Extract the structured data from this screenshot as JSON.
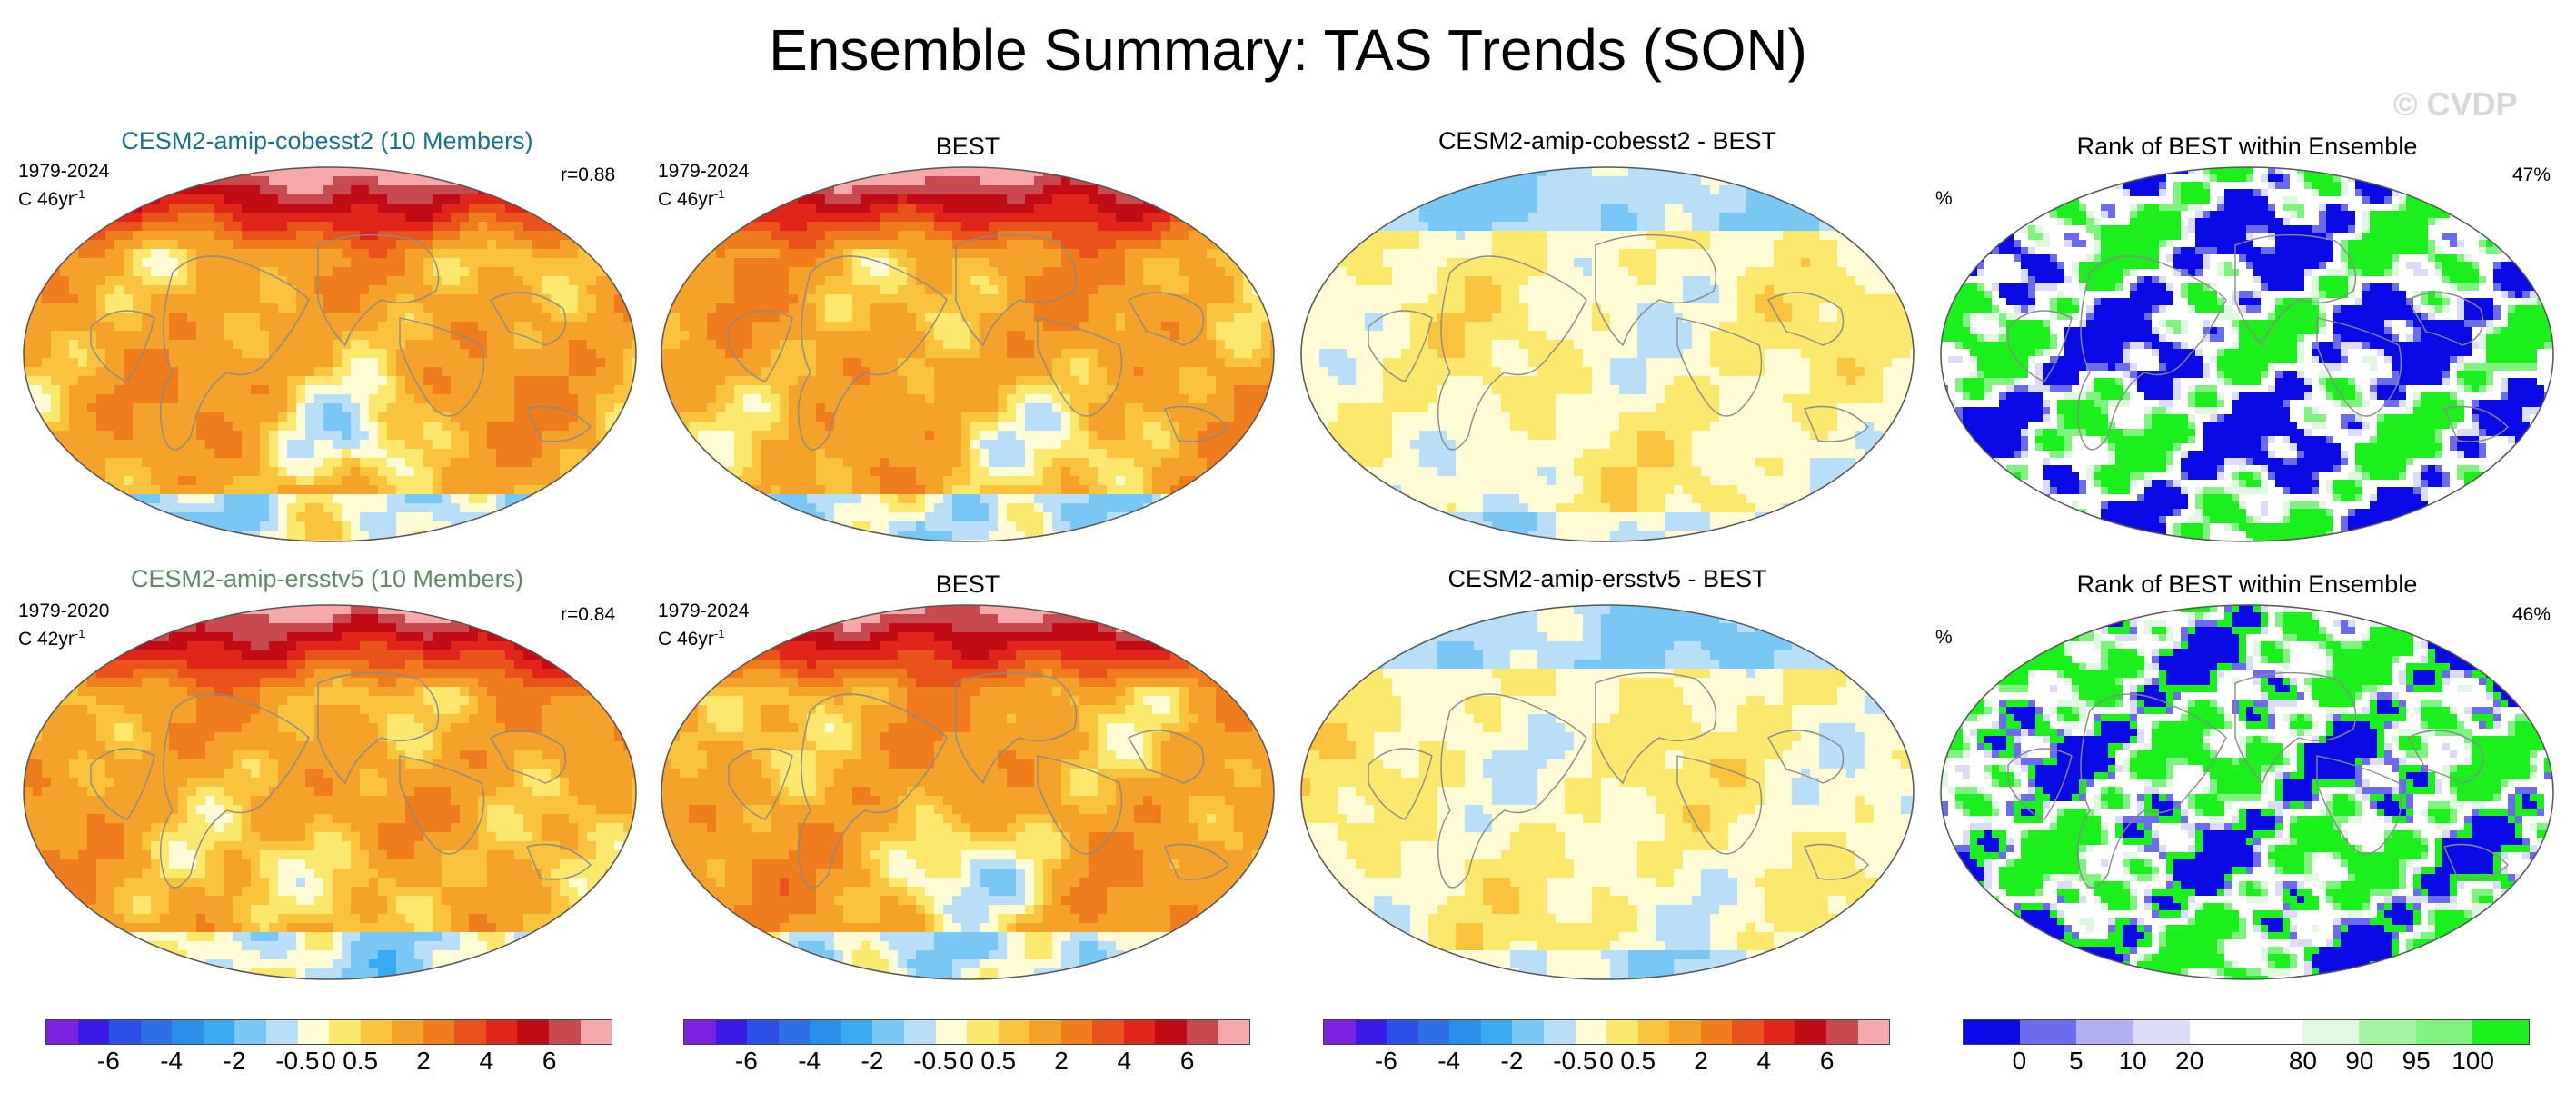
{
  "title": "Ensemble Summary: TAS Trends (SON)",
  "watermark": "© CVDP",
  "colors": {
    "model_title_row1": "#1a6f8f",
    "model_title_row2": "#5c8a62",
    "trend_palette": [
      "#7b22e0",
      "#3b1ae8",
      "#2e4ee8",
      "#2f6fe6",
      "#2c8fea",
      "#39aaf0",
      "#79c7f4",
      "#b8dff7",
      "#fefcd4",
      "#fde86e",
      "#f9c43c",
      "#f4a229",
      "#ef7d1c",
      "#e9521a",
      "#e2251a",
      "#c10c16",
      "#c84a4e",
      "#f7a8ab"
    ],
    "rank_palette": [
      "#0a0ae6",
      "#6b6bee",
      "#b0b0f2",
      "#dcdcf9",
      "#ffffff",
      "#ffffff",
      "#dff8df",
      "#a4f4a4",
      "#7ff27f",
      "#1cf01c"
    ]
  },
  "rows": [
    {
      "panels": [
        {
          "type": "trend",
          "title": "CESM2-amip-cobesst2 (10 Members)",
          "period": "1979-2024",
          "units": "C 46yr",
          "units_exp": "-1",
          "corr": "r=0.88",
          "field": "model"
        },
        {
          "type": "trend",
          "title": "BEST",
          "period": "1979-2024",
          "units": "C 46yr",
          "units_exp": "-1",
          "field": "obs"
        },
        {
          "type": "diff",
          "title": "CESM2-amip-cobesst2 - BEST",
          "field": "diff"
        },
        {
          "type": "rank",
          "title": "Rank of BEST within Ensemble",
          "percent_symbol": "%",
          "percent_value": "47%",
          "field": "rank"
        }
      ]
    },
    {
      "panels": [
        {
          "type": "trend",
          "title": "CESM2-amip-ersstv5 (10 Members)",
          "period": "1979-2020",
          "units": "C 42yr",
          "units_exp": "-1",
          "corr": "r=0.84",
          "field": "model"
        },
        {
          "type": "trend",
          "title": "BEST",
          "period": "1979-2024",
          "units": "C 46yr",
          "units_exp": "-1",
          "field": "obs"
        },
        {
          "type": "diff",
          "title": "CESM2-amip-ersstv5 - BEST",
          "field": "diff"
        },
        {
          "type": "rank",
          "title": "Rank of BEST within Ensemble",
          "percent_symbol": "%",
          "percent_value": "46%",
          "field": "rank"
        }
      ]
    }
  ],
  "colorbars": {
    "trend_labels": [
      "-6",
      "-4",
      "-2",
      "-0.5",
      "0",
      "0.5",
      "2",
      "4",
      "6"
    ],
    "rank_labels": [
      "0",
      "5",
      "10",
      "20",
      "80",
      "90",
      "95",
      "100"
    ]
  }
}
